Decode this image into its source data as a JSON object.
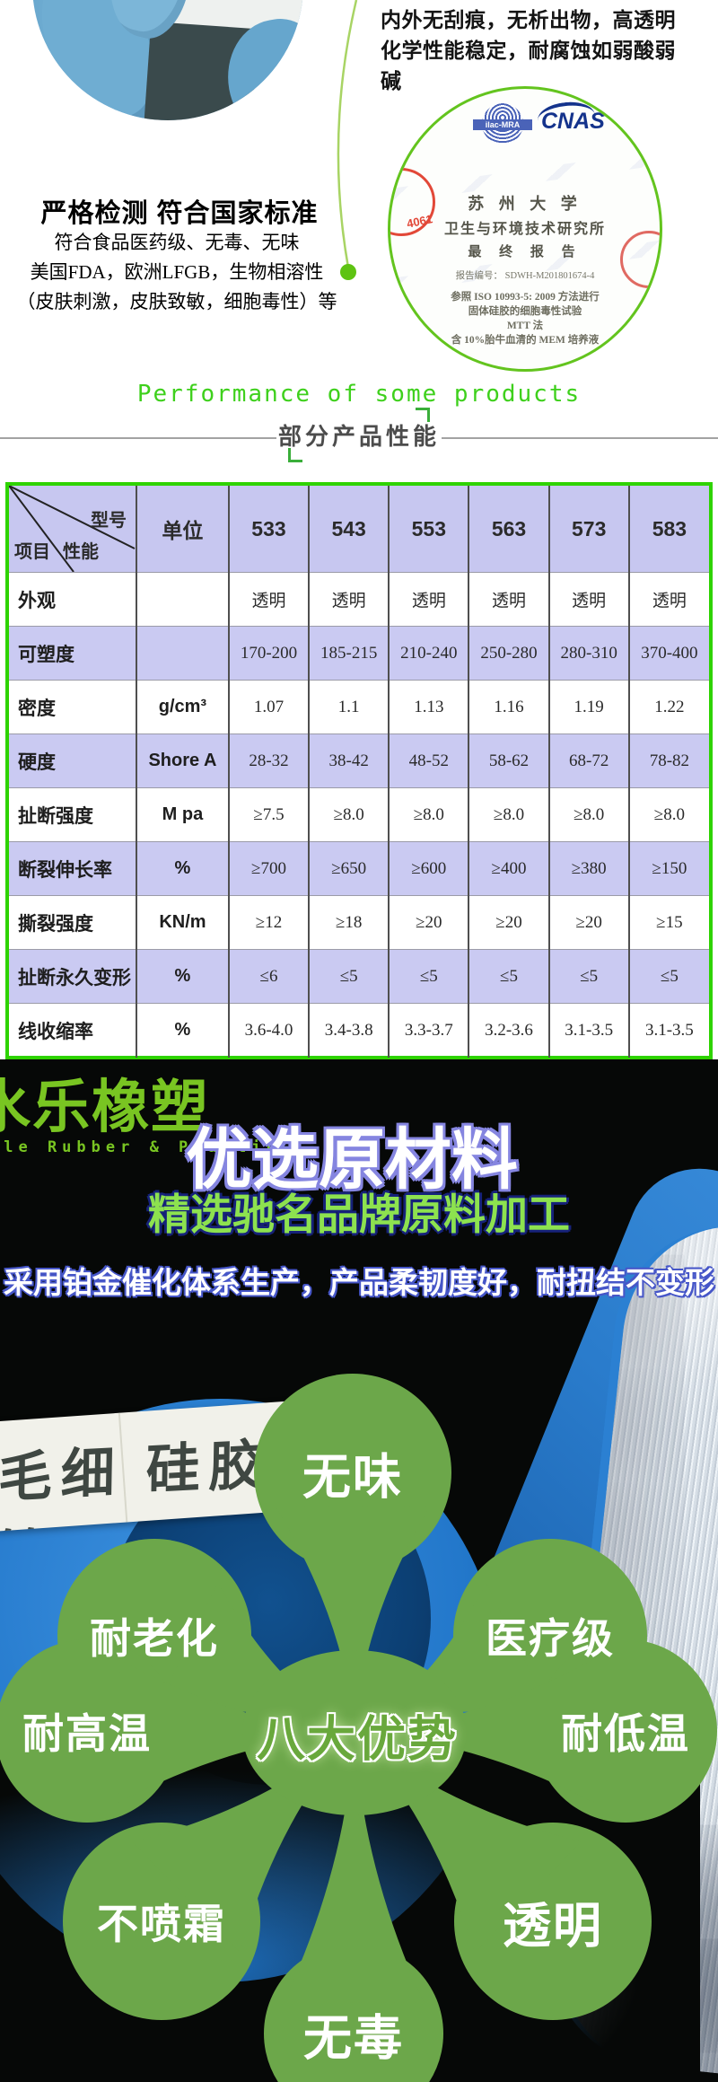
{
  "top": {
    "right_text_lines": [
      "内外无刮痕，无析出物，高透明",
      "化学性能稳定，耐腐蚀如弱酸弱碱"
    ],
    "heading": "严格检测 符合国家标准",
    "paragraph_lines": [
      "符合食品医药级、无毒、无味",
      "美国FDA，欧洲LFGB，生物相溶性",
      "（皮肤刺激，皮肤致敏，细胞毒性）等"
    ]
  },
  "certificate": {
    "ilac_label": "ilac-MRA",
    "cnas_label": "CNAS",
    "stamp_number": "4061",
    "org_line1": "苏 州 大 学",
    "org_line2": "卫生与环境技术研究所",
    "org_line3": "最 终 报 告",
    "report_no": "报告编号：  SDWH-M201801674-4",
    "detail_lines": [
      "参照 ISO 10993-5: 2009 方法进行",
      "固体硅胶的细胞毒性试验",
      "MTT 法",
      "含 10%胎牛血清的 MEM 培养液"
    ]
  },
  "section_heading": {
    "en": "Performance of some products",
    "zh": "部分产品性能"
  },
  "table": {
    "corner": {
      "top": "型号",
      "mid": "性能",
      "bottom": "项目"
    },
    "columns": [
      "单位",
      "533",
      "543",
      "553",
      "563",
      "573",
      "583"
    ],
    "rows": [
      {
        "label": "外观",
        "unit": "",
        "values": [
          "透明",
          "透明",
          "透明",
          "透明",
          "透明",
          "透明"
        ],
        "shaded": false
      },
      {
        "label": "可塑度",
        "unit": "",
        "values": [
          "170-200",
          "185-215",
          "210-240",
          "250-280",
          "280-310",
          "370-400"
        ],
        "shaded": true
      },
      {
        "label": "密度",
        "unit": "g/cm³",
        "values": [
          "1.07",
          "1.1",
          "1.13",
          "1.16",
          "1.19",
          "1.22"
        ],
        "shaded": false
      },
      {
        "label": "硬度",
        "unit": "Shore A",
        "values": [
          "28-32",
          "38-42",
          "48-52",
          "58-62",
          "68-72",
          "78-82"
        ],
        "shaded": true
      },
      {
        "label": "扯断强度",
        "unit": "M pa",
        "values": [
          "≥7.5",
          "≥8.0",
          "≥8.0",
          "≥8.0",
          "≥8.0",
          "≥8.0"
        ],
        "shaded": false
      },
      {
        "label": "断裂伸长率",
        "unit": "%",
        "values": [
          "≥700",
          "≥650",
          "≥600",
          "≥400",
          "≥380",
          "≥150"
        ],
        "shaded": true
      },
      {
        "label": "撕裂强度",
        "unit": "KN/m",
        "values": [
          "≥12",
          "≥18",
          "≥20",
          "≥20",
          "≥20",
          "≥15"
        ],
        "shaded": false
      },
      {
        "label": "扯断永久变形",
        "unit": "%",
        "values": [
          "≤6",
          "≤5",
          "≤5",
          "≤5",
          "≤5",
          "≤5"
        ],
        "shaded": true
      },
      {
        "label": "线收缩率",
        "unit": "%",
        "values": [
          "3.6-4.0",
          "3.4-3.8",
          "3.3-3.7",
          "3.2-3.6",
          "3.1-3.5",
          "3.1-3.5"
        ],
        "shaded": false
      }
    ]
  },
  "dark_section": {
    "logo_cn": "水乐橡塑",
    "logo_en": "tle Rubber & Plastic",
    "headline1": "优选原材料",
    "headline2": "精选驰名品牌原料加工",
    "headline3": "采用铂金催化体系生产，产品柔韧度好，耐扭结不变形",
    "tape_label": "毛细 硅胶管",
    "flower": {
      "center_label": "八大优势",
      "petals": [
        "无味",
        "耐老化",
        "医疗级",
        "耐高温",
        "耐低温",
        "不喷霜",
        "透明",
        "无毒"
      ]
    }
  },
  "colors": {
    "accent_green": "#3ed01c",
    "table_border_green": "#2ed300",
    "header_purple": "#c7c7f0",
    "row_purple": "#cacaf2",
    "petal_green": "#6ca74a",
    "logo_green": "#79c522",
    "outline_blue": "#8585e0",
    "cert_ring_green": "#63c41e",
    "stamp_red": "#e24838",
    "spool_blue": "#2378cb"
  }
}
